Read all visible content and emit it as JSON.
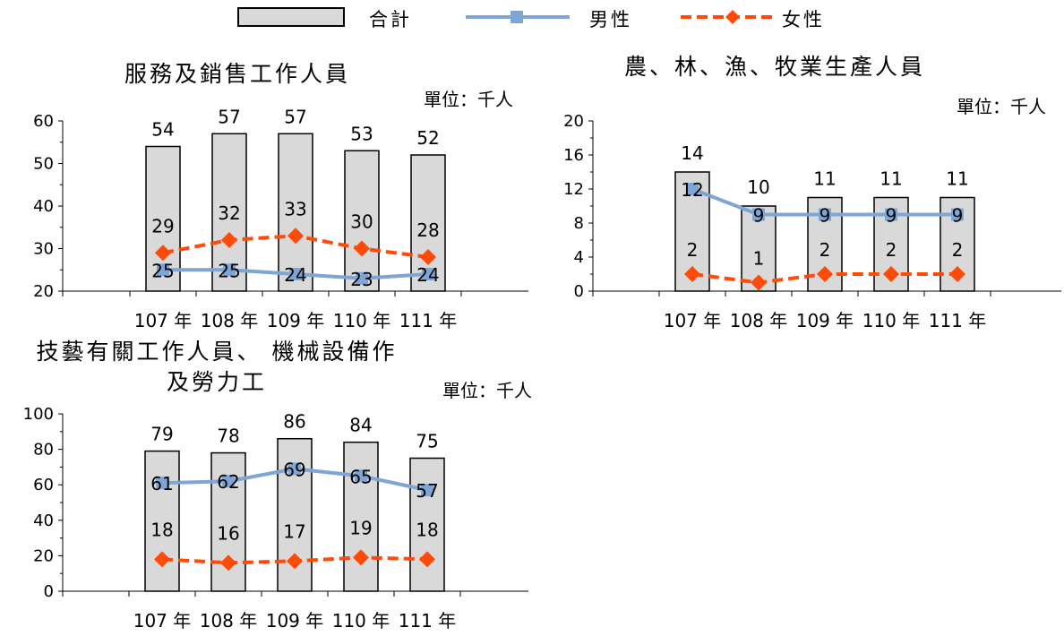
{
  "legend": {
    "total": "合計",
    "male": "男性",
    "female": "女性"
  },
  "colors": {
    "bar_fill": "#d9d9d9",
    "bar_stroke": "#000000",
    "male": "#7ea6d4",
    "female": "#ff4a08"
  },
  "chart_data": [
    {
      "type": "bar",
      "title": "服務及銷售工作人員",
      "unit": "單位：千人",
      "categories": [
        "107 年",
        "108 年",
        "109 年",
        "110 年",
        "111 年"
      ],
      "ylim": [
        20,
        60
      ],
      "yticks": [
        20,
        30,
        40,
        50,
        60
      ],
      "series": [
        {
          "name": "合計",
          "type": "bar",
          "values": [
            54,
            57,
            57,
            53,
            52
          ]
        },
        {
          "name": "男性",
          "type": "line",
          "values": [
            25,
            25,
            24,
            23,
            24
          ]
        },
        {
          "name": "女性",
          "type": "line",
          "values": [
            29,
            32,
            33,
            30,
            28
          ]
        }
      ]
    },
    {
      "type": "bar",
      "title": "農、林、漁、牧業生產人員",
      "unit": "單位：千人",
      "categories": [
        "107 年",
        "108 年",
        "109 年",
        "110 年",
        "111 年"
      ],
      "ylim": [
        0,
        20
      ],
      "yticks": [
        0,
        4,
        8,
        12,
        16,
        20
      ],
      "series": [
        {
          "name": "合計",
          "type": "bar",
          "values": [
            14,
            10,
            11,
            11,
            11
          ]
        },
        {
          "name": "男性",
          "type": "line",
          "values": [
            12,
            9,
            9,
            9,
            9
          ]
        },
        {
          "name": "女性",
          "type": "line",
          "values": [
            2,
            1,
            2,
            2,
            2
          ]
        }
      ]
    },
    {
      "type": "bar",
      "title": [
        "技藝有關工作人員、 機械設備作",
        "及勞力工"
      ],
      "unit": "單位：千人",
      "categories": [
        "107 年",
        "108 年",
        "109 年",
        "110 年",
        "111 年"
      ],
      "ylim": [
        0,
        100
      ],
      "yticks": [
        0,
        20,
        40,
        60,
        80,
        100
      ],
      "series": [
        {
          "name": "合計",
          "type": "bar",
          "values": [
            79,
            78,
            86,
            84,
            75
          ]
        },
        {
          "name": "男性",
          "type": "line",
          "values": [
            61,
            62,
            69,
            65,
            57
          ]
        },
        {
          "name": "女性",
          "type": "line",
          "values": [
            18,
            16,
            17,
            19,
            18
          ]
        }
      ]
    }
  ]
}
